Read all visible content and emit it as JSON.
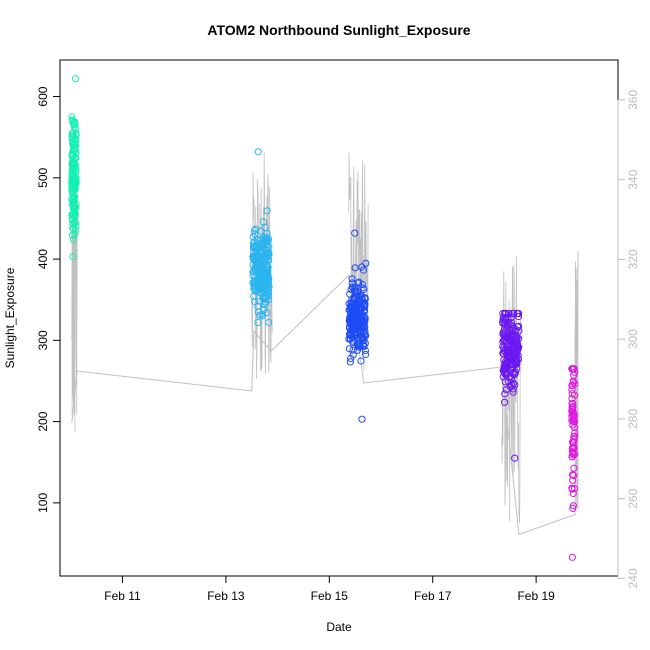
{
  "chart_data": {
    "type": "scatter",
    "title": "ATOM2 Northbound Sunlight_Exposure",
    "xlabel": "Date",
    "ylabel": "Sunlight_Exposure",
    "x_axis": {
      "scale": "date",
      "range": [
        "2024-02-09 19:00",
        "2024-02-20 14:00"
      ],
      "ticks": [
        {
          "value": "2024-02-11 00:00",
          "label": "Feb 11"
        },
        {
          "value": "2024-02-13 00:00",
          "label": "Feb 13"
        },
        {
          "value": "2024-02-15 00:00",
          "label": "Feb 15"
        },
        {
          "value": "2024-02-17 00:00",
          "label": "Feb 17"
        },
        {
          "value": "2024-02-19 00:00",
          "label": "Feb 19"
        }
      ]
    },
    "y_axis": {
      "range": [
        10,
        645
      ],
      "ticks": [
        {
          "value": 100,
          "label": "100"
        },
        {
          "value": 200,
          "label": "200"
        },
        {
          "value": 300,
          "label": "300"
        },
        {
          "value": 400,
          "label": "400"
        },
        {
          "value": 500,
          "label": "500"
        },
        {
          "value": 600,
          "label": "600"
        }
      ]
    },
    "y2_axis": {
      "color": "#bdbdbd",
      "range": [
        240.6,
        370
      ],
      "ticks": [
        {
          "value": 240,
          "label": "240"
        },
        {
          "value": 260,
          "label": "260"
        },
        {
          "value": 280,
          "label": "280"
        },
        {
          "value": 300,
          "label": "300"
        },
        {
          "value": 320,
          "label": "320"
        },
        {
          "value": 340,
          "label": "340"
        },
        {
          "value": 360,
          "label": "360"
        }
      ]
    },
    "grid": false,
    "legend": "none",
    "point_series": [
      {
        "color": "#14f0b4",
        "start": "2024-02-10 00:30",
        "end": "2024-02-10 02:30",
        "center": 500,
        "spread": 35,
        "min": 403,
        "max": 622,
        "count": 160
      },
      {
        "color": "#2ab4f0",
        "start": "2024-02-13 12:30",
        "end": "2024-02-13 20:00",
        "center": 385,
        "spread": 25,
        "min": 322,
        "max": 532,
        "count": 220
      },
      {
        "color": "#1e4cf5",
        "start": "2024-02-15 09:00",
        "end": "2024-02-15 17:00",
        "center": 330,
        "spread": 22,
        "min": 203,
        "max": 432,
        "count": 230
      },
      {
        "color": "#6a18f0",
        "start": "2024-02-18 08:30",
        "end": "2024-02-18 16:00",
        "center": 290,
        "spread": 25,
        "min": 155,
        "max": 333,
        "count": 200
      },
      {
        "color": "#e018e0",
        "start": "2024-02-19 16:30",
        "end": "2024-02-19 18:00",
        "center": 200,
        "spread": 45,
        "min": 33,
        "max": 265,
        "count": 70
      }
    ],
    "line_series": {
      "color": "#c0c0c0",
      "axis": "right",
      "bursts": [
        {
          "start": "2024-02-10 00:30",
          "end": "2024-02-10 03:00",
          "low": 275,
          "high": 340
        },
        {
          "start": "2024-02-13 12:00",
          "end": "2024-02-13 21:30",
          "low": 290,
          "high": 347
        },
        {
          "start": "2024-02-15 09:00",
          "end": "2024-02-15 18:00",
          "low": 291,
          "high": 348
        },
        {
          "start": "2024-02-18 08:00",
          "end": "2024-02-18 17:00",
          "low": 251,
          "high": 323
        },
        {
          "start": "2024-02-19 18:00",
          "end": "2024-02-19 19:30",
          "low": 256,
          "high": 322
        }
      ],
      "path": [
        {
          "x": "2024-02-10 00:30",
          "y": 279
        },
        {
          "x": "2024-02-10 03:00",
          "y": 292
        },
        {
          "x": "2024-02-13 12:00",
          "y": 287
        },
        {
          "x": "2024-02-13 13:00",
          "y": 302
        },
        {
          "x": "2024-02-13 21:00",
          "y": 297
        },
        {
          "x": "2024-02-15 09:00",
          "y": 316
        },
        {
          "x": "2024-02-15 16:00",
          "y": 289
        },
        {
          "x": "2024-02-18 08:00",
          "y": 293
        },
        {
          "x": "2024-02-18 16:00",
          "y": 251
        },
        {
          "x": "2024-02-19 18:00",
          "y": 256
        },
        {
          "x": "2024-02-19 19:30",
          "y": 322
        }
      ]
    }
  }
}
